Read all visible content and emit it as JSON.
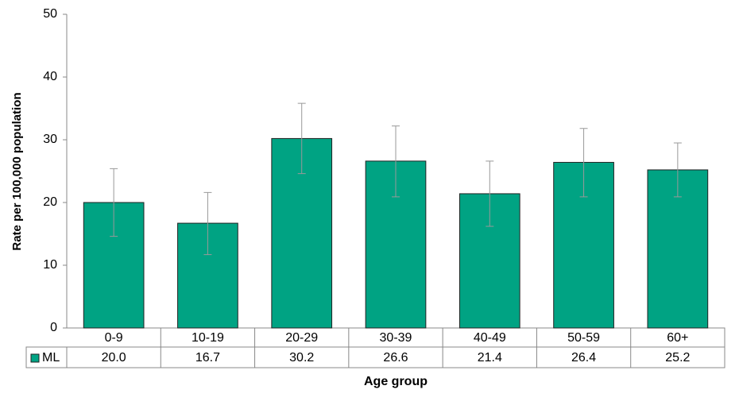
{
  "chart_data": {
    "type": "bar",
    "x_label": "Age group",
    "y_label": "Rate per 100,000 population",
    "categories": [
      "0-9",
      "10-19",
      "20-29",
      "30-39",
      "40-49",
      "50-59",
      "60+"
    ],
    "series": [
      {
        "name": "ML",
        "color": "#00a383",
        "values": [
          20.0,
          16.7,
          30.2,
          26.6,
          21.4,
          26.4,
          25.2
        ],
        "value_labels": [
          "20.0",
          "16.7",
          "30.2",
          "26.6",
          "21.4",
          "26.4",
          "25.2"
        ],
        "ci_lower": [
          14.6,
          11.7,
          24.6,
          20.9,
          16.2,
          20.9,
          20.9
        ],
        "ci_upper": [
          25.4,
          21.6,
          35.8,
          32.2,
          26.6,
          31.8,
          29.5
        ]
      }
    ],
    "ylim": [
      0,
      50
    ],
    "yticks": [
      0,
      10,
      20,
      30,
      40,
      50
    ],
    "grid": false
  }
}
